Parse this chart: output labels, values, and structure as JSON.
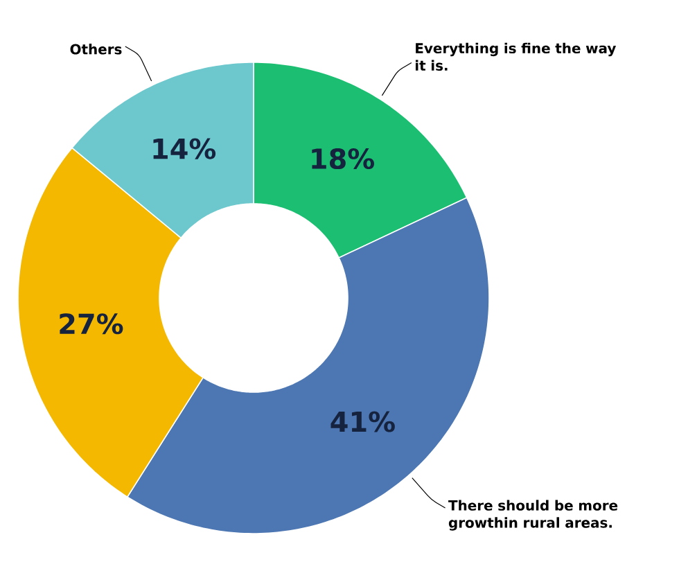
{
  "chart_data": {
    "type": "donut",
    "categories": [
      "Everything is fine the way it is.",
      "There should be more growthin rural areas.",
      null,
      "Others"
    ],
    "values": [
      18,
      41,
      27,
      14
    ],
    "value_labels": [
      "18%",
      "41%",
      "27%",
      "14%"
    ],
    "colors": [
      "#1cbf72",
      "#4d77b3",
      "#f5b800",
      "#6cc8cc"
    ]
  }
}
